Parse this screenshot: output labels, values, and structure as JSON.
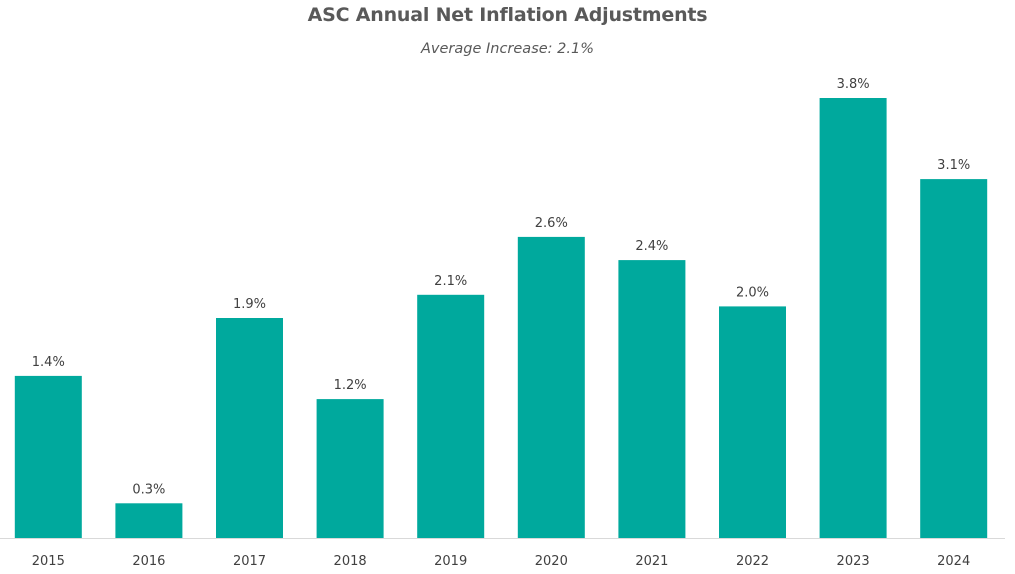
{
  "chart_data": {
    "type": "bar",
    "title": "ASC Annual Net Inflation Adjustments",
    "subtitle": "Average Increase: 2.1%",
    "categories": [
      "2015",
      "2016",
      "2017",
      "2018",
      "2019",
      "2020",
      "2021",
      "2022",
      "2023",
      "2024"
    ],
    "values": [
      1.4,
      0.3,
      1.9,
      1.2,
      2.1,
      2.6,
      2.4,
      2.0,
      3.8,
      3.1
    ],
    "data_labels": [
      "1.4%",
      "0.3%",
      "1.9%",
      "1.2%",
      "2.1%",
      "2.6%",
      "2.4%",
      "2.0%",
      "3.8%",
      "3.1%"
    ],
    "xlabel": "",
    "ylabel": "",
    "ylim": [
      0,
      3.8
    ],
    "grid": false,
    "legend": "none",
    "bar_color": "#00A99D",
    "axis_color": "#D9D9D9"
  }
}
